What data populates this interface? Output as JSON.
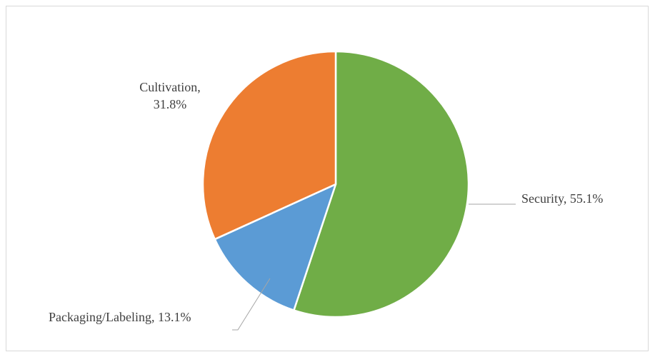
{
  "chart_data": {
    "type": "pie",
    "categories": [
      "Security",
      "Packaging/Labeling",
      "Cultivation"
    ],
    "values": [
      55.1,
      13.1,
      31.8
    ],
    "unit": "%",
    "colors": [
      "#70ad47",
      "#5b9bd5",
      "#ed7d31"
    ],
    "start_angle_deg": 0,
    "direction": "clockwise",
    "legend": "none",
    "labels": [
      {
        "lines": [
          "Security, 55.1%"
        ]
      },
      {
        "lines": [
          "Packaging/Labeling, 13.1%"
        ]
      },
      {
        "lines": [
          "Cultivation,",
          "31.8%"
        ]
      }
    ]
  }
}
